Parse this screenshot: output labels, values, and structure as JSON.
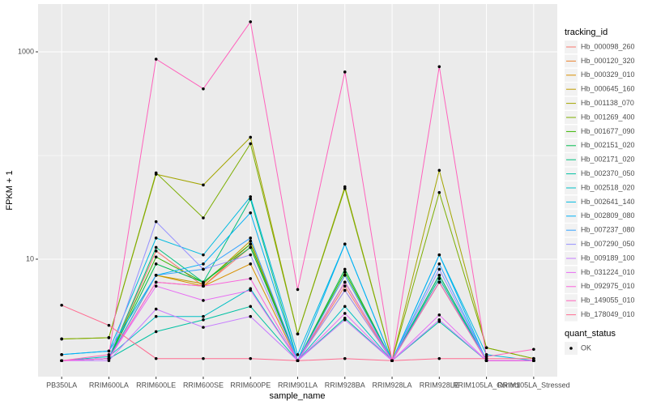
{
  "chart_data": {
    "type": "line",
    "x_label": "sample_name",
    "y_label": "FPKM + 1",
    "categories": [
      "PB350LA",
      "RRIM600LA",
      "RRIM600LE",
      "RRIM600SE",
      "RRIM600PE",
      "RRIM901LA",
      "RRIM928BA",
      "RRIM928LA",
      "RRIM928LE",
      "RRIM105LA_Control",
      "RRIM105LA_Stressed"
    ],
    "log_y": true,
    "ylim": [
      0.736,
      2891
    ],
    "yticks": [
      10,
      1000
    ],
    "grid": true,
    "legend_title": "tracking_id",
    "legend_position": "right",
    "point_legend": {
      "title": "quant_status",
      "entries": [
        "OK"
      ],
      "color": "#000000"
    },
    "series": [
      {
        "name": "Hb_000098_260",
        "color": "#F8766D",
        "values": [
          1.05,
          1.1,
          12,
          5.5,
          13,
          1.05,
          5.5,
          1.05,
          6,
          1.05,
          1.05
        ]
      },
      {
        "name": "Hb_000120_320",
        "color": "#EA8331",
        "values": [
          1.05,
          1.1,
          6,
          5.5,
          14,
          1.05,
          5,
          1.05,
          7,
          1.05,
          1.05
        ]
      },
      {
        "name": "Hb_000329_010",
        "color": "#D89000",
        "values": [
          1.05,
          1.1,
          7,
          5.5,
          9,
          1.05,
          6,
          1.05,
          6.5,
          1.05,
          1.05
        ]
      },
      {
        "name": "Hb_000645_160",
        "color": "#C09B00",
        "values": [
          1.05,
          1.1,
          7,
          5.8,
          15,
          1.05,
          7,
          1.05,
          6,
          1.05,
          1.05
        ]
      },
      {
        "name": "Hb_001138_070",
        "color": "#A3A500",
        "values": [
          1.7,
          1.75,
          66,
          52,
          150,
          1.9,
          50,
          1.05,
          72,
          1.4,
          1.1
        ]
      },
      {
        "name": "Hb_001269_400",
        "color": "#7CAE00",
        "values": [
          1.7,
          1.75,
          68,
          25,
          130,
          1.9,
          48,
          1.05,
          44,
          1.4,
          1.1
        ]
      },
      {
        "name": "Hb_001677_090",
        "color": "#39B600",
        "values": [
          1.05,
          1.1,
          10.5,
          6,
          14,
          1.05,
          7.5,
          1.05,
          6,
          1.05,
          1.05
        ]
      },
      {
        "name": "Hb_002151_020",
        "color": "#00BB4E",
        "values": [
          1.05,
          1.1,
          9,
          6,
          13,
          1.05,
          8,
          1.05,
          7,
          1.05,
          1.05
        ]
      },
      {
        "name": "Hb_002171_020",
        "color": "#00BF7D",
        "values": [
          1.05,
          1.1,
          13,
          6,
          38,
          1.05,
          6,
          1.05,
          7,
          1.05,
          1.05
        ]
      },
      {
        "name": "Hb_002370_050",
        "color": "#00C1A3",
        "values": [
          1.05,
          1.1,
          2,
          2.6,
          3.5,
          1.05,
          2.7,
          1.05,
          2.5,
          1.05,
          1.05
        ]
      },
      {
        "name": "Hb_002518_020",
        "color": "#00BFC4",
        "values": [
          1.05,
          1.15,
          2.8,
          2.8,
          5.2,
          1.05,
          3.5,
          1.05,
          6.5,
          1.05,
          1.05
        ]
      },
      {
        "name": "Hb_002641_140",
        "color": "#00BAE0",
        "values": [
          1.2,
          1.3,
          16,
          11,
          40,
          1.2,
          14,
          1.05,
          11,
          1.2,
          1.05
        ]
      },
      {
        "name": "Hb_002809_080",
        "color": "#00B0F6",
        "values": [
          1.2,
          1.3,
          7,
          9,
          28,
          1.05,
          14,
          1.05,
          11,
          1.05,
          1.05
        ]
      },
      {
        "name": "Hb_007237_080",
        "color": "#35A2FF",
        "values": [
          1.05,
          1.1,
          7,
          8,
          16,
          1.05,
          7,
          1.05,
          9,
          1.05,
          1.05
        ]
      },
      {
        "name": "Hb_007290_050",
        "color": "#9590FF",
        "values": [
          1.05,
          1.1,
          23,
          8,
          11,
          1.05,
          5,
          1.05,
          8,
          1.05,
          1.05
        ]
      },
      {
        "name": "Hb_009189_100",
        "color": "#C77CFF",
        "values": [
          1.05,
          1.05,
          3.3,
          2.2,
          2.8,
          1.05,
          2.6,
          1.05,
          2.6,
          1.05,
          1.05
        ]
      },
      {
        "name": "Hb_031224_010",
        "color": "#E76BF3",
        "values": [
          1.05,
          1.1,
          5.5,
          4,
          5,
          1.05,
          3,
          1.05,
          2.9,
          1.05,
          1.05
        ]
      },
      {
        "name": "Hb_092975_010",
        "color": "#FA62DB",
        "values": [
          1.05,
          1.1,
          6,
          5.5,
          6.5,
          1.05,
          6,
          1.05,
          6,
          1.05,
          1.05
        ]
      },
      {
        "name": "Hb_149055_010",
        "color": "#FF62BC",
        "values": [
          1.05,
          1.2,
          850,
          440,
          1950,
          5.1,
          640,
          1.05,
          720,
          1.15,
          1.35
        ]
      },
      {
        "name": "Hb_178049_010",
        "color": "#FF6C91",
        "values": [
          3.6,
          2.3,
          1.1,
          1.1,
          1.1,
          1.05,
          1.1,
          1.05,
          1.1,
          1.1,
          1.1
        ]
      }
    ]
  }
}
